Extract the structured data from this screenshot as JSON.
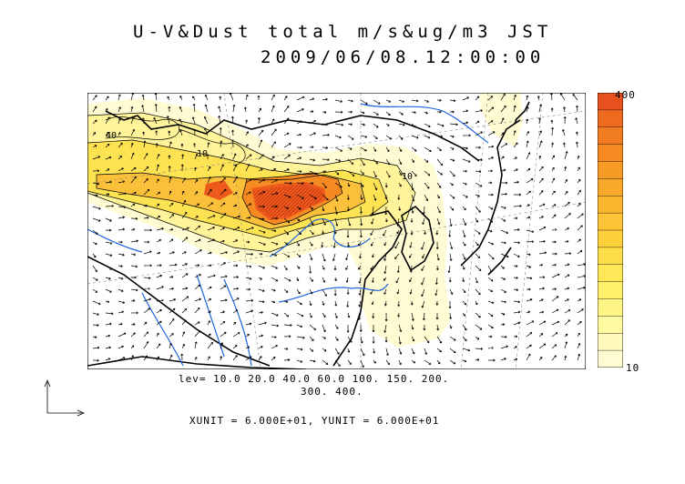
{
  "title": {
    "line1": "U-V&Dust total m/s&ug/m3 JST",
    "line2": "2009/06/08.12:00:00"
  },
  "colorbar": {
    "max_label": "400",
    "min_label": "10",
    "colors": [
      "#e8501e",
      "#ee6a1e",
      "#f27c20",
      "#f58a22",
      "#f89a26",
      "#faa82a",
      "#fbb630",
      "#fcc436",
      "#fdd03c",
      "#fede48",
      "#fee858",
      "#fff06c",
      "#fff584",
      "#fff9a0",
      "#fffbbc",
      "#fffcd4"
    ]
  },
  "contour_levels": {
    "line1": "lev= 10.0 20.0 40.0 60.0 100. 150. 200.",
    "line2": "300. 400."
  },
  "units_text": "XUNIT = 6.000E+01, YUNIT = 6.000E+01",
  "map_colors": {
    "ocean": "#ffffff",
    "coast": "#000000",
    "rivers": "#1e64dc",
    "grid": "#888888"
  }
}
